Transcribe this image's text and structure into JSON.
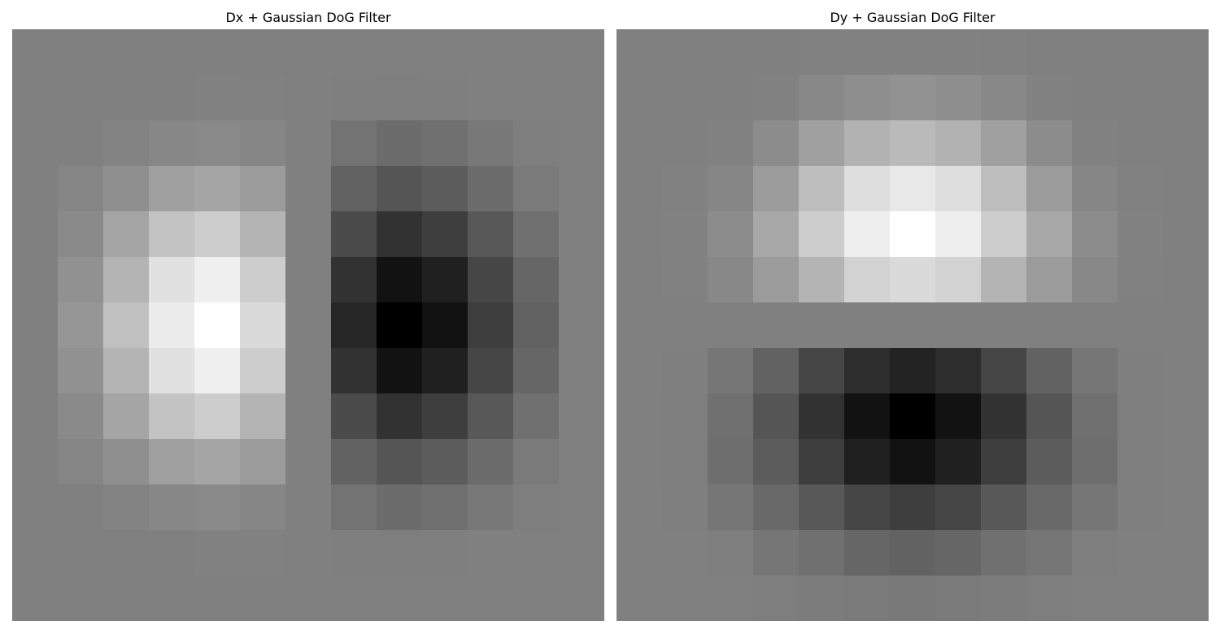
{
  "chart_data": [
    {
      "type": "heatmap",
      "title": "Dx + Gaussian DoG Filter",
      "colormap": "gray",
      "grid": false,
      "axes_visible": false,
      "rows": 13,
      "cols": 13,
      "values": [
        [
          128,
          128,
          128,
          128,
          128,
          128,
          128,
          128,
          128,
          128,
          128,
          128,
          128
        ],
        [
          128,
          128,
          128,
          128,
          130,
          129,
          128,
          127,
          126,
          127,
          128,
          128,
          128
        ],
        [
          128,
          128,
          131,
          135,
          137,
          134,
          128,
          115,
          108,
          112,
          120,
          126,
          128
        ],
        [
          128,
          133,
          143,
          160,
          165,
          155,
          128,
          98,
          85,
          92,
          108,
          122,
          128
        ],
        [
          128,
          138,
          165,
          195,
          205,
          180,
          128,
          75,
          50,
          62,
          88,
          112,
          128
        ],
        [
          128,
          145,
          180,
          225,
          240,
          205,
          128,
          50,
          18,
          32,
          70,
          102,
          128
        ],
        [
          128,
          150,
          192,
          235,
          255,
          218,
          128,
          38,
          0,
          18,
          62,
          98,
          128
        ],
        [
          128,
          145,
          180,
          225,
          240,
          205,
          128,
          50,
          18,
          32,
          70,
          102,
          128
        ],
        [
          128,
          138,
          165,
          195,
          205,
          180,
          128,
          75,
          50,
          62,
          88,
          112,
          128
        ],
        [
          128,
          133,
          143,
          160,
          165,
          155,
          128,
          98,
          85,
          92,
          108,
          122,
          128
        ],
        [
          128,
          128,
          131,
          135,
          137,
          134,
          128,
          115,
          108,
          112,
          120,
          126,
          128
        ],
        [
          128,
          128,
          128,
          128,
          130,
          129,
          128,
          127,
          126,
          127,
          128,
          128,
          128
        ],
        [
          128,
          128,
          128,
          128,
          128,
          128,
          128,
          128,
          128,
          128,
          128,
          128,
          128
        ]
      ]
    },
    {
      "type": "heatmap",
      "title": "Dy + Gaussian DoG Filter",
      "colormap": "gray",
      "grid": false,
      "axes_visible": false,
      "rows": 13,
      "cols": 13,
      "values": [
        [
          128,
          128,
          128,
          128,
          129,
          130,
          130,
          130,
          129,
          128,
          128,
          128,
          128
        ],
        [
          128,
          128,
          128,
          130,
          136,
          142,
          146,
          142,
          136,
          130,
          128,
          128,
          128
        ],
        [
          128,
          128,
          130,
          140,
          160,
          178,
          186,
          178,
          160,
          140,
          130,
          128,
          128
        ],
        [
          128,
          129,
          134,
          155,
          190,
          222,
          232,
          222,
          190,
          155,
          134,
          129,
          128
        ],
        [
          128,
          130,
          140,
          168,
          205,
          238,
          255,
          238,
          205,
          168,
          140,
          130,
          128
        ],
        [
          128,
          129,
          136,
          155,
          180,
          210,
          218,
          210,
          180,
          155,
          136,
          129,
          128
        ],
        [
          128,
          128,
          128,
          128,
          128,
          128,
          128,
          128,
          128,
          128,
          128,
          128,
          128
        ],
        [
          128,
          127,
          118,
          98,
          70,
          45,
          35,
          45,
          70,
          98,
          118,
          127,
          128
        ],
        [
          128,
          126,
          112,
          85,
          50,
          18,
          0,
          18,
          50,
          85,
          112,
          126,
          128
        ],
        [
          128,
          126,
          110,
          92,
          62,
          32,
          18,
          32,
          62,
          92,
          110,
          126,
          128
        ],
        [
          128,
          127,
          118,
          105,
          88,
          70,
          62,
          70,
          88,
          105,
          118,
          127,
          128
        ],
        [
          128,
          128,
          126,
          118,
          112,
          102,
          98,
          102,
          112,
          118,
          126,
          128,
          128
        ],
        [
          128,
          128,
          128,
          126,
          124,
          122,
          121,
          122,
          124,
          126,
          128,
          128,
          128
        ]
      ]
    }
  ]
}
